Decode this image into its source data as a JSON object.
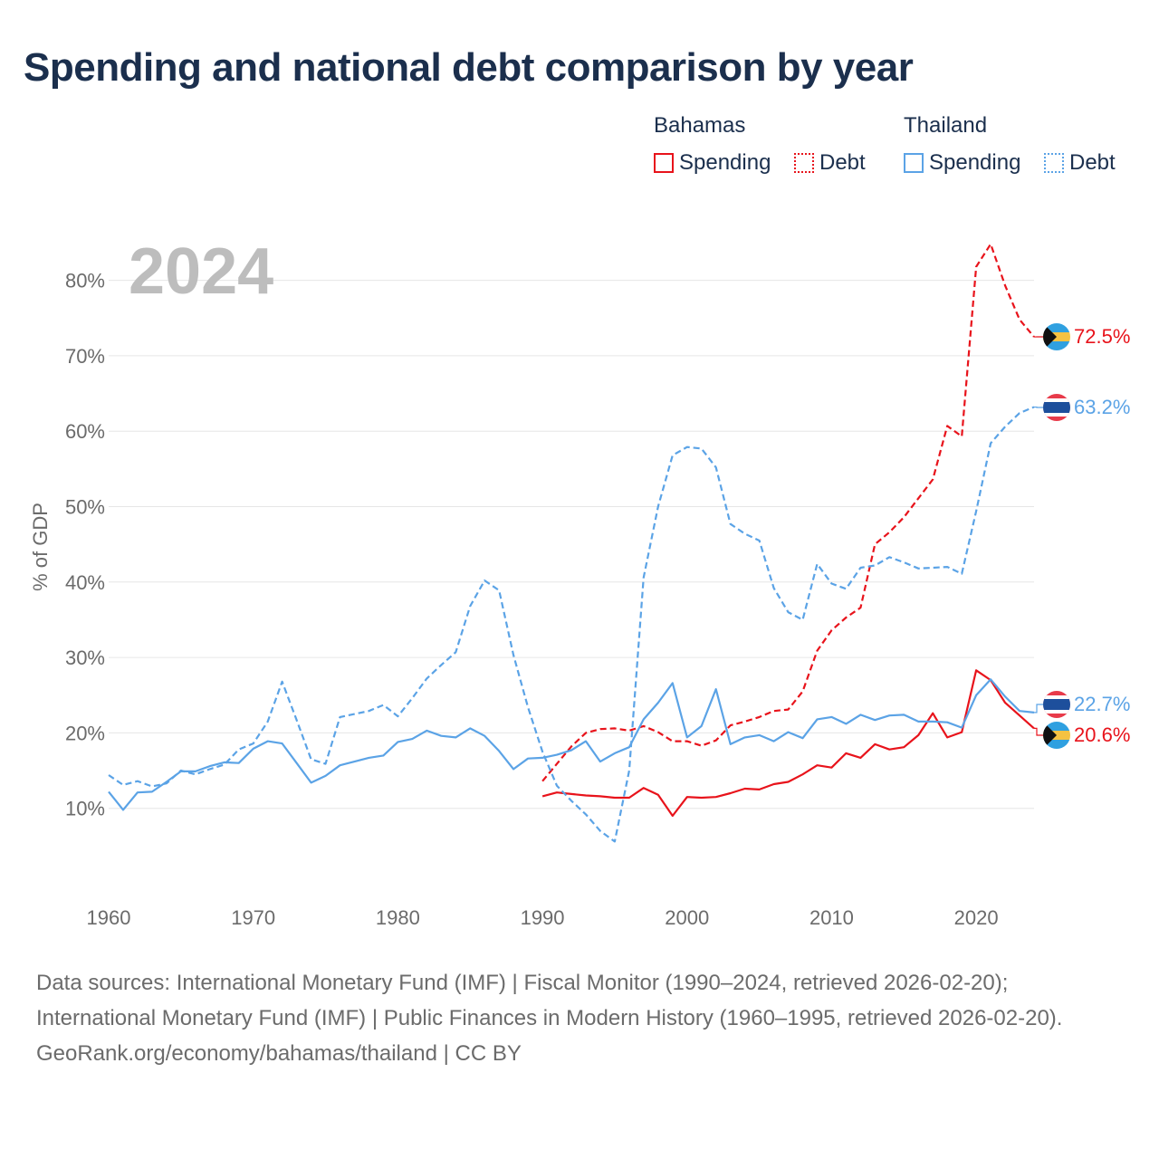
{
  "chart_data": {
    "type": "line",
    "title": "Spending and national debt comparison by year",
    "current_year_label": "2024",
    "ylabel": "% of GDP",
    "xlabel": "",
    "xlim": [
      1960,
      2024
    ],
    "ylim": [
      0,
      85
    ],
    "x_ticks": [
      "1960",
      "1970",
      "1980",
      "1990",
      "2000",
      "2010",
      "2020"
    ],
    "y_ticks": [
      "10%",
      "20%",
      "30%",
      "40%",
      "50%",
      "60%",
      "70%",
      "80%"
    ],
    "grid": true,
    "legend": {
      "placement": "top-right",
      "groups": [
        {
          "name": "Bahamas",
          "items": [
            "Spending",
            "Debt"
          ]
        },
        {
          "name": "Thailand",
          "items": [
            "Spending",
            "Debt"
          ]
        }
      ]
    },
    "colors": {
      "Bahamas": "#e8131b",
      "Thailand": "#5ba3e6"
    },
    "series": [
      {
        "name": "Bahamas Spending",
        "country": "Bahamas",
        "metric": "Spending",
        "style": "solid",
        "end_label": "20.6%",
        "x": [
          1990,
          1991,
          1992,
          1993,
          1994,
          1995,
          1996,
          1997,
          1998,
          1999,
          2000,
          2001,
          2002,
          2003,
          2004,
          2005,
          2006,
          2007,
          2008,
          2009,
          2010,
          2011,
          2012,
          2013,
          2014,
          2015,
          2016,
          2017,
          2018,
          2019,
          2020,
          2021,
          2022,
          2023,
          2024
        ],
        "values": [
          11.6,
          12.1,
          11.9,
          11.7,
          11.6,
          11.4,
          11.4,
          12.7,
          11.8,
          9.0,
          11.5,
          11.4,
          11.5,
          12.0,
          12.6,
          12.5,
          13.2,
          13.5,
          14.5,
          15.7,
          15.4,
          17.3,
          16.7,
          18.5,
          17.8,
          18.1,
          19.7,
          22.6,
          19.4,
          20.1,
          28.3,
          27.0,
          24.0,
          22.3,
          20.6
        ]
      },
      {
        "name": "Bahamas Debt",
        "country": "Bahamas",
        "metric": "Debt",
        "style": "dashed",
        "end_label": "72.5%",
        "x": [
          1990,
          1991,
          1992,
          1993,
          1994,
          1995,
          1996,
          1997,
          1998,
          1999,
          2000,
          2001,
          2002,
          2003,
          2004,
          2005,
          2006,
          2007,
          2008,
          2009,
          2010,
          2011,
          2012,
          2013,
          2014,
          2015,
          2016,
          2017,
          2018,
          2019,
          2020,
          2021,
          2022,
          2023,
          2024
        ],
        "values": [
          13.6,
          15.9,
          18.2,
          20.0,
          20.5,
          20.6,
          20.3,
          20.9,
          20.1,
          18.9,
          18.9,
          18.3,
          19.0,
          21.0,
          21.5,
          22.1,
          22.9,
          23.1,
          25.5,
          30.9,
          33.6,
          35.3,
          36.6,
          45.0,
          46.6,
          48.6,
          51.1,
          53.6,
          60.7,
          59.3,
          81.8,
          84.8,
          79.3,
          74.8,
          72.5
        ]
      },
      {
        "name": "Thailand Spending",
        "country": "Thailand",
        "metric": "Spending",
        "style": "solid",
        "end_label": "22.7%",
        "x": [
          1960,
          1961,
          1962,
          1963,
          1964,
          1965,
          1966,
          1967,
          1968,
          1969,
          1970,
          1971,
          1972,
          1973,
          1974,
          1975,
          1976,
          1977,
          1978,
          1979,
          1980,
          1981,
          1982,
          1983,
          1984,
          1985,
          1986,
          1987,
          1988,
          1989,
          1990,
          1991,
          1992,
          1993,
          1994,
          1995,
          1996,
          1997,
          1998,
          1999,
          2000,
          2001,
          2002,
          2003,
          2004,
          2005,
          2006,
          2007,
          2008,
          2009,
          2010,
          2011,
          2012,
          2013,
          2014,
          2015,
          2016,
          2017,
          2018,
          2019,
          2020,
          2021,
          2022,
          2023,
          2024
        ],
        "values": [
          12.2,
          9.8,
          12.1,
          12.2,
          13.5,
          14.9,
          14.9,
          15.6,
          16.1,
          16.0,
          17.9,
          18.9,
          18.6,
          16.0,
          13.4,
          14.3,
          15.7,
          16.2,
          16.7,
          17.0,
          18.8,
          19.2,
          20.3,
          19.6,
          19.4,
          20.6,
          19.6,
          17.6,
          15.2,
          16.6,
          16.7,
          17.1,
          17.7,
          18.9,
          16.2,
          17.3,
          18.1,
          21.8,
          24.0,
          26.6,
          19.4,
          20.9,
          25.8,
          18.5,
          19.4,
          19.7,
          18.9,
          20.1,
          19.3,
          21.8,
          22.1,
          21.2,
          22.4,
          21.7,
          22.3,
          22.4,
          21.5,
          21.5,
          21.4,
          20.7,
          25.0,
          27.1,
          24.8,
          22.9,
          22.7
        ]
      },
      {
        "name": "Thailand Debt",
        "country": "Thailand",
        "metric": "Debt",
        "style": "dashed",
        "end_label": "63.2%",
        "x": [
          1960,
          1961,
          1962,
          1963,
          1964,
          1965,
          1966,
          1967,
          1968,
          1969,
          1970,
          1971,
          1972,
          1973,
          1974,
          1975,
          1976,
          1977,
          1978,
          1979,
          1980,
          1981,
          1982,
          1983,
          1984,
          1985,
          1986,
          1987,
          1988,
          1989,
          1990,
          1991,
          1992,
          1993,
          1994,
          1995,
          1996,
          1997,
          1998,
          1999,
          2000,
          2001,
          2002,
          2003,
          2004,
          2005,
          2006,
          2007,
          2008,
          2009,
          2010,
          2011,
          2012,
          2013,
          2014,
          2015,
          2016,
          2017,
          2018,
          2019,
          2020,
          2021,
          2022,
          2023,
          2024
        ],
        "values": [
          14.4,
          13.1,
          13.6,
          12.9,
          13.3,
          15.0,
          14.5,
          15.2,
          15.8,
          17.8,
          18.6,
          21.5,
          26.8,
          21.7,
          16.5,
          15.9,
          22.1,
          22.5,
          22.9,
          23.7,
          22.2,
          24.6,
          27.2,
          29.0,
          30.7,
          36.8,
          40.2,
          38.9,
          30.3,
          23.4,
          17.5,
          13.0,
          11.0,
          9.2,
          7.0,
          5.6,
          15.0,
          40.6,
          50.0,
          56.8,
          57.9,
          57.7,
          55.2,
          47.7,
          46.4,
          45.5,
          39.2,
          36.0,
          35.0,
          42.4,
          39.8,
          39.1,
          41.9,
          42.2,
          43.3,
          42.6,
          41.8,
          41.9,
          42.0,
          41.1,
          49.4,
          58.4,
          60.6,
          62.4,
          63.2
        ]
      }
    ]
  },
  "legend_labels": {
    "bahamas_group": "Bahamas",
    "thailand_group": "Thailand",
    "bahamas_spending": "Spending",
    "bahamas_debt": "Debt",
    "thailand_spending": "Spending",
    "thailand_debt": "Debt"
  },
  "source_text": {
    "line1": "Data sources: International Monetary Fund (IMF) | Fiscal Monitor (1990–2024, retrieved 2026-02-20); International Monetary Fund (IMF) | Public Finances in Modern History (1960–1995, retrieved 2026-02-20).",
    "line2": "GeoRank.org/economy/bahamas/thailand | CC BY"
  }
}
